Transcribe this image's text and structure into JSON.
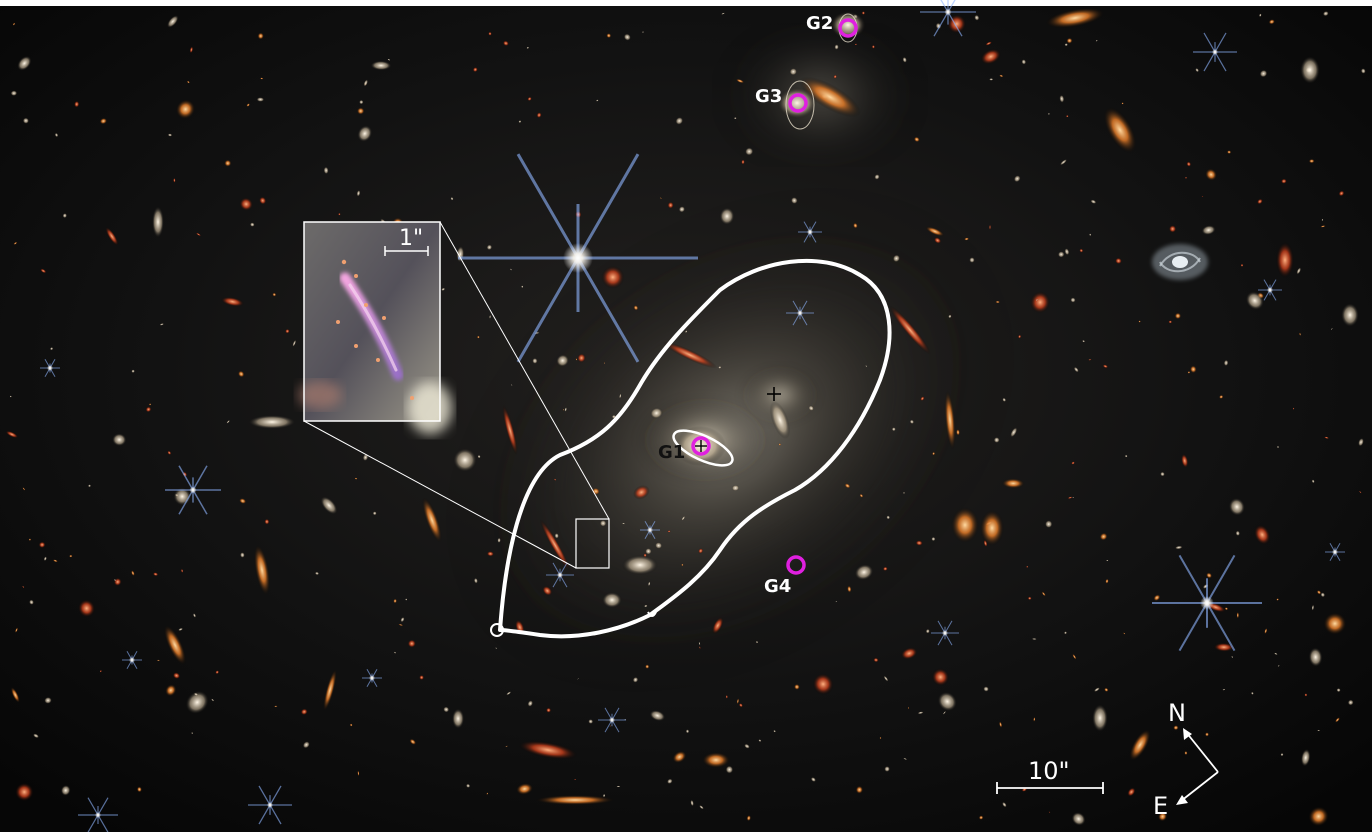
{
  "galaxies": [
    {
      "id": "G1",
      "label": "G1",
      "label_color": "dark"
    },
    {
      "id": "G2",
      "label": "G2",
      "label_color": "light"
    },
    {
      "id": "G3",
      "label": "G3",
      "label_color": "light"
    },
    {
      "id": "G4",
      "label": "G4",
      "label_color": "light"
    }
  ],
  "marker_color": "#e020e0",
  "curve_color": "#ffffff",
  "scale_bar": {
    "label": "10\""
  },
  "inset": {
    "scale_label": "1\""
  },
  "compass": {
    "north": "N",
    "east": "E"
  }
}
